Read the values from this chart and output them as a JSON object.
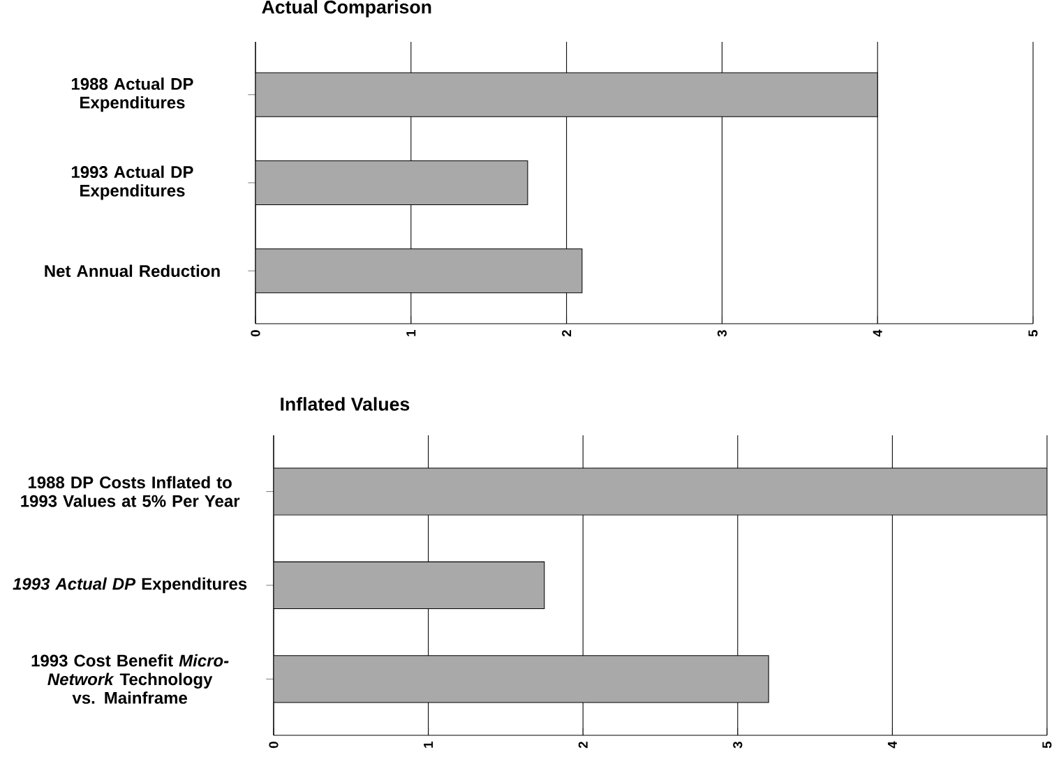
{
  "chart_data": [
    {
      "type": "bar",
      "orientation": "horizontal",
      "title": "Actual Comparison",
      "categories": [
        "1988 Actual DP Expenditures",
        "1993 Actual DP Expenditures",
        "Net Annual Reduction"
      ],
      "values": [
        4.0,
        1.75,
        2.1
      ],
      "color": "#a9a9a9",
      "xlim": [
        0,
        5
      ],
      "xticks": [
        0,
        1,
        2,
        3,
        4,
        5
      ],
      "grid": "x"
    },
    {
      "type": "bar",
      "orientation": "horizontal",
      "title": "Inflated Values",
      "categories": [
        "1988 DP Costs Inflated to 1993 Values at 5% Per Year",
        "*1993 Actual DP* Expenditures",
        "1993 Cost Benefit *Micro-Network* Technology vs. Mainframe"
      ],
      "values": [
        5.0,
        1.75,
        3.2
      ],
      "color": "#a9a9a9",
      "xlim": [
        0,
        5
      ],
      "xticks": [
        0,
        1,
        2,
        3,
        4,
        5
      ],
      "grid": "x"
    }
  ]
}
